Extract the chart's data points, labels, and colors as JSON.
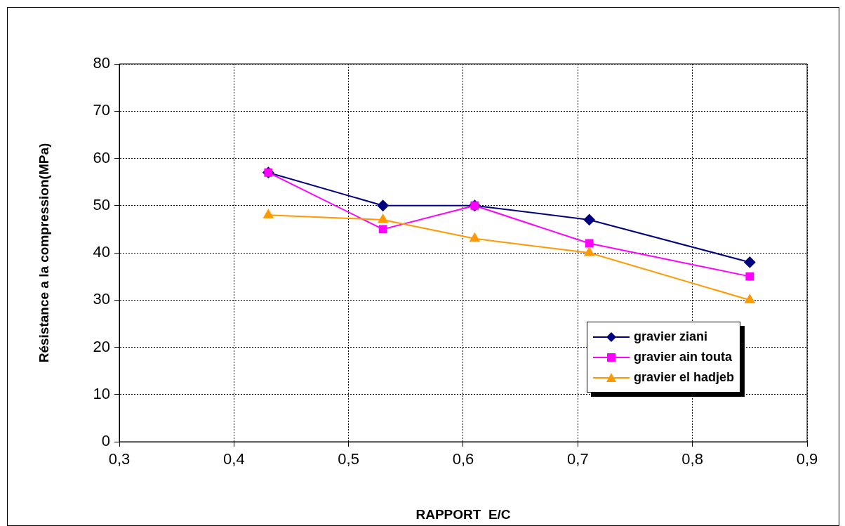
{
  "chart_data": {
    "type": "line",
    "xlabel": "RAPPORT  E/C",
    "ylabel": "Résistance a la compression(MPa)",
    "x": [
      0.43,
      0.53,
      0.61,
      0.71,
      0.85
    ],
    "series": [
      {
        "name": "gravier ziani",
        "color": "#000080",
        "marker": "diamond",
        "values": [
          57,
          50,
          50,
          47,
          38
        ]
      },
      {
        "name": "gravier ain touta",
        "color": "#ff00ff",
        "marker": "square",
        "values": [
          57,
          45,
          50,
          42,
          35
        ]
      },
      {
        "name": "gravier el hadjeb",
        "color": "#ff9900",
        "marker": "triangle",
        "values": [
          48,
          47,
          43,
          40,
          30
        ]
      }
    ],
    "xlim": [
      0.3,
      0.9
    ],
    "xticks": [
      {
        "value": 0.3,
        "label": "0,3"
      },
      {
        "value": 0.4,
        "label": "0,4"
      },
      {
        "value": 0.5,
        "label": "0,5"
      },
      {
        "value": 0.6,
        "label": "0,6"
      },
      {
        "value": 0.7,
        "label": "0,7"
      },
      {
        "value": 0.8,
        "label": "0,8"
      },
      {
        "value": 0.9,
        "label": "0,9"
      }
    ],
    "ylim": [
      0,
      80
    ],
    "yticks": [
      0,
      10,
      20,
      30,
      40,
      50,
      60,
      70,
      80
    ],
    "grid": true,
    "legend": "bottom right",
    "line_style": "solid"
  }
}
